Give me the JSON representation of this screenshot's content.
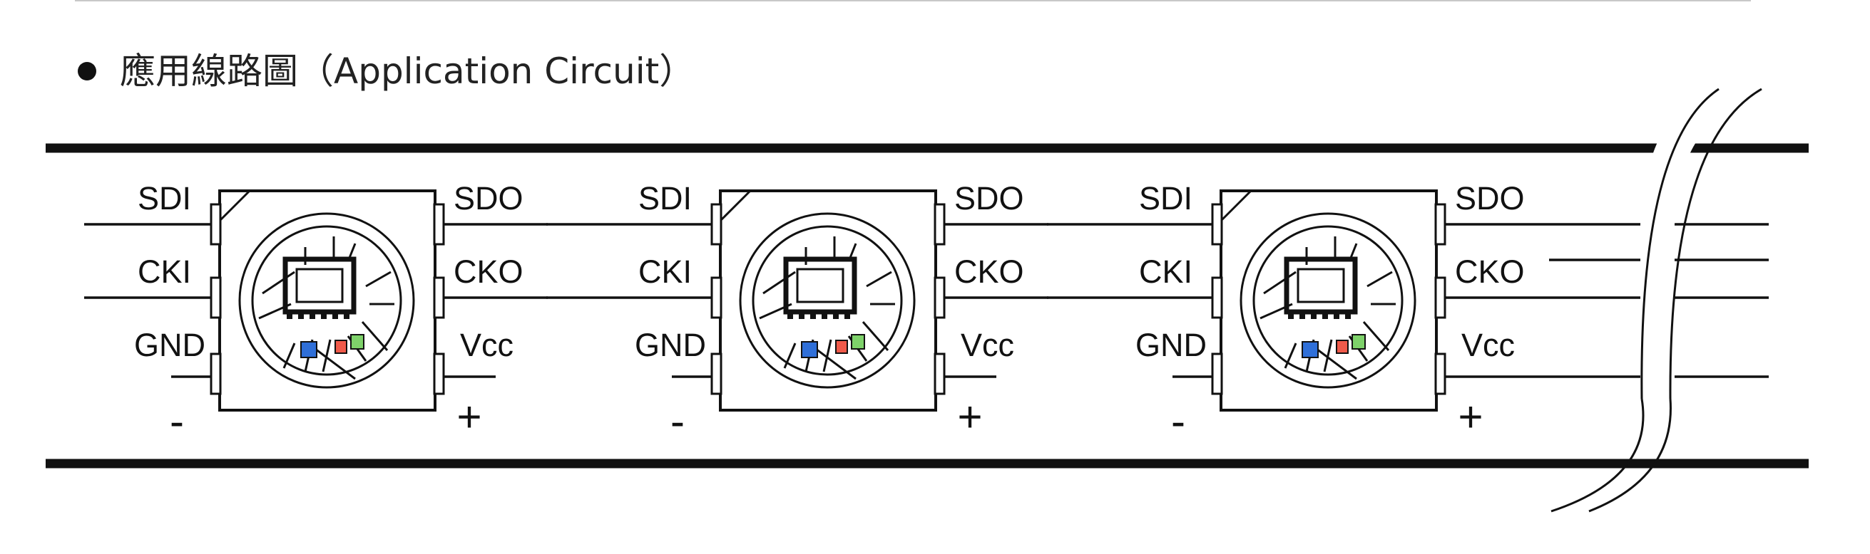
{
  "heading": {
    "bullet": "●",
    "text": "應用線路圖（Application Circuit）"
  },
  "pin_labels": {
    "sdi": "SDI",
    "cki": "CKI",
    "gnd": "GND",
    "sdo": "SDO",
    "cko": "CKO",
    "vcc": "Vcc",
    "minus": "-",
    "plus": "+"
  },
  "led_chip_colors": {
    "blue": "#2f6fd8",
    "red": "#f05a4a",
    "green": "#7ed26a"
  },
  "led_count": 3
}
